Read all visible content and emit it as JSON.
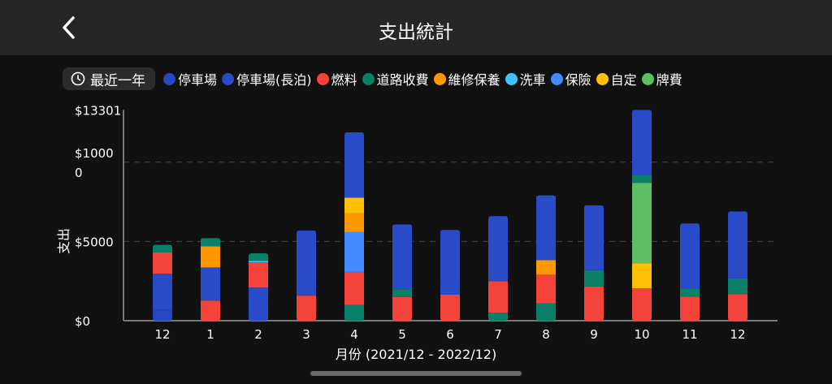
{
  "header": {
    "title": "支出統計",
    "back_icon": "chevron-left-icon"
  },
  "filter": {
    "label": "最近一年",
    "icon": "clock-icon"
  },
  "colors": {
    "停車場": "#2646c2",
    "停車場(長泊)": "#2a4bc8",
    "燃料": "#f4433a",
    "道路收費": "#0a8068",
    "維修保養": "#ff9800",
    "洗車": "#40c4ff",
    "保險": "#448aff",
    "自定": "#ffc107",
    "牌費": "#5cbf63"
  },
  "chart_data": {
    "type": "bar",
    "stacked": true,
    "legend": [
      "停車場",
      "停車場(長泊)",
      "燃料",
      "道路收費",
      "維修保養",
      "洗車",
      "保險",
      "自定",
      "牌費"
    ],
    "legend_placement": "top",
    "ylabel": "支出",
    "xlabel": "月份 (2021/12 - 2022/12)",
    "ylim": [
      0,
      13301
    ],
    "yticks": [
      "$0",
      "$5000",
      "$10000",
      "$13301"
    ],
    "ytick_values": [
      0,
      5000,
      10000,
      13301
    ],
    "grid": "dashed horizontal",
    "categories": [
      "12",
      "1",
      "2",
      "3",
      "4",
      "5",
      "6",
      "7",
      "8",
      "9",
      "10",
      "11",
      "12"
    ],
    "stacks": [
      [
        {
          "s": "停車場",
          "v": 680
        },
        {
          "s": "停車場(長泊)",
          "v": 2290
        },
        {
          "s": "燃料",
          "v": 1340
        },
        {
          "s": "道路收費",
          "v": 480
        }
      ],
      [
        {
          "s": "燃料",
          "v": 1270
        },
        {
          "s": "停車場(長泊)",
          "v": 2090
        },
        {
          "s": "維修保養",
          "v": 1340
        },
        {
          "s": "道路收費",
          "v": 510
        }
      ],
      [
        {
          "s": "停車場(長泊)",
          "v": 2090
        },
        {
          "s": "燃料",
          "v": 1590
        },
        {
          "s": "洗車",
          "v": 90
        },
        {
          "s": "道路收費",
          "v": 480
        }
      ],
      [
        {
          "s": "燃料",
          "v": 1580
        },
        {
          "s": "停車場(長泊)",
          "v": 4110
        }
      ],
      [
        {
          "s": "道路收費",
          "v": 990
        },
        {
          "s": "燃料",
          "v": 2090
        },
        {
          "s": "保險",
          "v": 2530
        },
        {
          "s": "維修保養",
          "v": 1160
        },
        {
          "s": "自定",
          "v": 990
        },
        {
          "s": "停車場(長泊)",
          "v": 4130
        }
      ],
      [
        {
          "s": "燃料",
          "v": 1490
        },
        {
          "s": "道路收費",
          "v": 500
        },
        {
          "s": "停車場(長泊)",
          "v": 4090
        }
      ],
      [
        {
          "s": "燃料",
          "v": 1640
        },
        {
          "s": "停車場(長泊)",
          "v": 4090
        }
      ],
      [
        {
          "s": "道路收費",
          "v": 500
        },
        {
          "s": "燃料",
          "v": 1990
        },
        {
          "s": "停車場(長泊)",
          "v": 4110
        }
      ],
      [
        {
          "s": "道路收費",
          "v": 1100
        },
        {
          "s": "燃料",
          "v": 1800
        },
        {
          "s": "維修保養",
          "v": 920
        },
        {
          "s": "停車場(長泊)",
          "v": 4090
        }
      ],
      [
        {
          "s": "燃料",
          "v": 2160
        },
        {
          "s": "道路收費",
          "v": 1030
        },
        {
          "s": "停車場(長泊)",
          "v": 4090
        }
      ],
      [
        {
          "s": "燃料",
          "v": 2040
        },
        {
          "s": "自定",
          "v": 1590
        },
        {
          "s": "牌費",
          "v": 5070
        },
        {
          "s": "道路收費",
          "v": 510
        },
        {
          "s": "停車場(長泊)",
          "v": 4091
        }
      ],
      [
        {
          "s": "燃料",
          "v": 1520
        },
        {
          "s": "道路收費",
          "v": 510
        },
        {
          "s": "停車場(長泊)",
          "v": 4110
        }
      ],
      [
        {
          "s": "燃料",
          "v": 1680
        },
        {
          "s": "道路收費",
          "v": 990
        },
        {
          "s": "停車場(長泊)",
          "v": 4230
        }
      ]
    ]
  }
}
